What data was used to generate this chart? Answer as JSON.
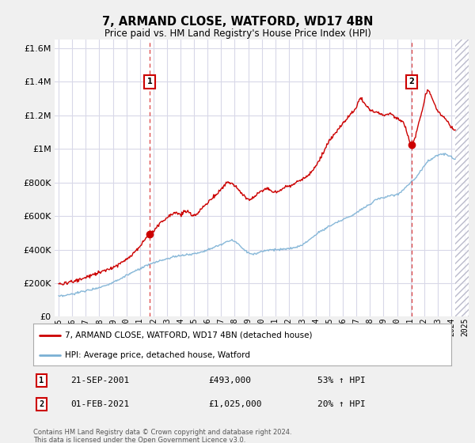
{
  "title": "7, ARMAND CLOSE, WATFORD, WD17 4BN",
  "subtitle": "Price paid vs. HM Land Registry's House Price Index (HPI)",
  "property_label": "7, ARMAND CLOSE, WATFORD, WD17 4BN (detached house)",
  "hpi_label": "HPI: Average price, detached house, Watford",
  "sale1_date": "21-SEP-2001",
  "sale1_price": "£493,000",
  "sale1_hpi": "53% ↑ HPI",
  "sale2_date": "01-FEB-2021",
  "sale2_price": "£1,025,000",
  "sale2_hpi": "20% ↑ HPI",
  "footer": "Contains HM Land Registry data © Crown copyright and database right 2024.\nThis data is licensed under the Open Government Licence v3.0.",
  "property_color": "#cc0000",
  "hpi_color": "#7ab0d4",
  "background_color": "#f0f0f0",
  "plot_bg_color": "#ffffff",
  "grid_color": "#d8d8e8",
  "dashed_line_color": "#dd4444",
  "ylim": [
    0,
    1650000
  ],
  "yticks": [
    0,
    200000,
    400000,
    600000,
    800000,
    1000000,
    1200000,
    1400000,
    1600000
  ],
  "xlim_start": 1994.7,
  "xlim_end": 2025.3,
  "sale1_x": 2001.72,
  "sale1_y": 493000,
  "sale2_x": 2021.08,
  "sale2_y": 1025000
}
